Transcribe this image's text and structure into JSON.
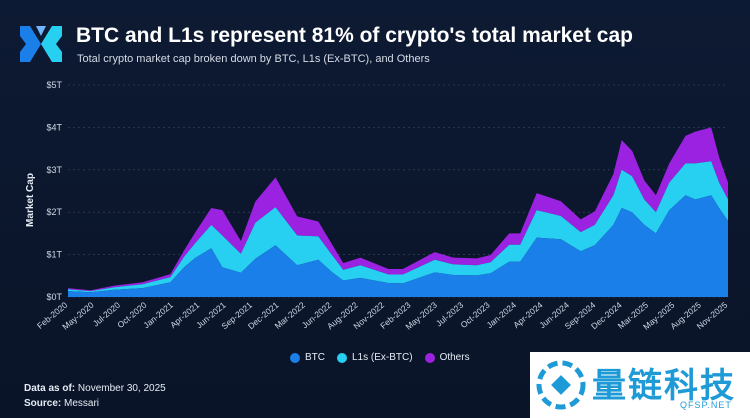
{
  "header": {
    "title": "BTC and L1s represent 81% of crypto's total market cap",
    "subtitle": "Total crypto market cap broken down by BTC, L1s (Ex-BTC), and Others"
  },
  "footer": {
    "data_as_of_label": "Data as of:",
    "data_as_of_value": "November 30, 2025",
    "source_label": "Source:",
    "source_value": "Messari"
  },
  "watermark": {
    "text": "量链科技",
    "sub": "QFSP.NET"
  },
  "colors": {
    "background": "#0b1529",
    "btc": "#1a7fe8",
    "l1s": "#27d0f0",
    "others": "#9b22e0",
    "grid": "#3a4a66",
    "watermark": "#1e9bd7"
  },
  "chart_data": {
    "type": "area",
    "stacked": true,
    "ylabel": "Market Cap",
    "ylim": [
      0,
      5
    ],
    "yticks": [
      {
        "value": 0,
        "label": "$0T"
      },
      {
        "value": 1,
        "label": "$1T"
      },
      {
        "value": 2,
        "label": "$2T"
      },
      {
        "value": 3,
        "label": "$3T"
      },
      {
        "value": 4,
        "label": "$4T"
      },
      {
        "value": 5,
        "label": "$5T"
      }
    ],
    "xlim": [
      "2020-01-01",
      "2025-11-30"
    ],
    "xticks": [
      "Feb-2020",
      "May-2020",
      "Jul-2020",
      "Oct-2020",
      "Jan-2021",
      "Apr-2021",
      "Jun-2021",
      "Sep-2021",
      "Dec-2021",
      "Mar-2022",
      "Jun-2022",
      "Aug-2022",
      "Nov-2022",
      "Feb-2023",
      "May-2023",
      "Jul-2023",
      "Oct-2023",
      "Jan-2024",
      "Apr-2024",
      "Jun-2024",
      "Sep-2024",
      "Dec-2024",
      "Mar-2025",
      "May-2025",
      "Aug-2025",
      "Nov-2025"
    ],
    "legend_position": "bottom",
    "grid": true,
    "x": [
      "2020-01-01",
      "2020-03-15",
      "2020-06-01",
      "2020-09-01",
      "2020-12-01",
      "2021-01-15",
      "2021-02-20",
      "2021-04-14",
      "2021-05-20",
      "2021-07-20",
      "2021-09-05",
      "2021-11-10",
      "2022-01-20",
      "2022-03-30",
      "2022-05-15",
      "2022-06-20",
      "2022-08-15",
      "2022-11-15",
      "2023-01-01",
      "2023-04-15",
      "2023-06-15",
      "2023-08-31",
      "2023-10-15",
      "2023-12-15",
      "2024-01-20",
      "2024-03-14",
      "2024-06-01",
      "2024-08-05",
      "2024-09-20",
      "2024-11-20",
      "2024-12-17",
      "2025-01-20",
      "2025-03-01",
      "2025-04-08",
      "2025-05-22",
      "2025-07-14",
      "2025-08-15",
      "2025-10-06",
      "2025-11-01",
      "2025-11-30"
    ],
    "series": [
      {
        "name": "BTC",
        "values": [
          0.14,
          0.11,
          0.17,
          0.21,
          0.35,
          0.7,
          0.92,
          1.15,
          0.7,
          0.57,
          0.9,
          1.22,
          0.75,
          0.88,
          0.58,
          0.39,
          0.45,
          0.33,
          0.32,
          0.58,
          0.52,
          0.51,
          0.56,
          0.83,
          0.83,
          1.4,
          1.36,
          1.08,
          1.22,
          1.7,
          2.1,
          2.0,
          1.7,
          1.5,
          2.05,
          2.4,
          2.3,
          2.4,
          2.1,
          1.8
        ]
      },
      {
        "name": "L1s (Ex-BTC)",
        "values": [
          0.04,
          0.03,
          0.06,
          0.09,
          0.12,
          0.25,
          0.35,
          0.55,
          0.75,
          0.45,
          0.85,
          0.9,
          0.7,
          0.55,
          0.4,
          0.25,
          0.3,
          0.2,
          0.21,
          0.3,
          0.25,
          0.24,
          0.26,
          0.4,
          0.4,
          0.65,
          0.55,
          0.45,
          0.48,
          0.7,
          0.9,
          0.85,
          0.6,
          0.5,
          0.65,
          0.75,
          0.85,
          0.8,
          0.6,
          0.5
        ]
      },
      {
        "name": "Others",
        "values": [
          0.03,
          0.02,
          0.04,
          0.05,
          0.07,
          0.15,
          0.25,
          0.4,
          0.6,
          0.3,
          0.5,
          0.7,
          0.45,
          0.35,
          0.25,
          0.16,
          0.18,
          0.13,
          0.13,
          0.18,
          0.16,
          0.16,
          0.17,
          0.27,
          0.27,
          0.4,
          0.35,
          0.3,
          0.32,
          0.5,
          0.7,
          0.6,
          0.45,
          0.4,
          0.45,
          0.65,
          0.75,
          0.8,
          0.6,
          0.4
        ]
      }
    ]
  }
}
